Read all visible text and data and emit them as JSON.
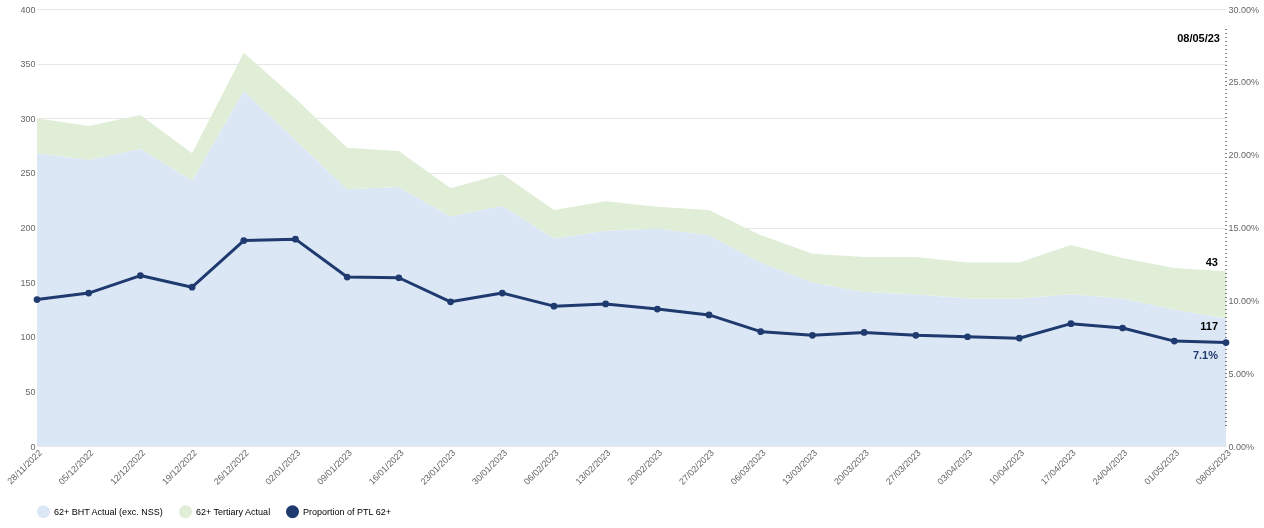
{
  "chart_data": {
    "type": "area",
    "stacked": true,
    "x": [
      "2022-11-28",
      "2022-12-05",
      "2022-12-12",
      "2022-12-19",
      "2022-12-26",
      "2023-01-02",
      "2023-01-09",
      "2023-01-16",
      "2023-01-23",
      "2023-01-30",
      "2023-02-06",
      "2023-02-13",
      "2023-02-20",
      "2023-02-27",
      "2023-03-06",
      "2023-03-13",
      "2023-03-20",
      "2023-03-27",
      "2023-04-03",
      "2023-04-10",
      "2023-04-17",
      "2023-04-24",
      "2023-05-01",
      "2023-05-08"
    ],
    "xlim": [
      "2022-11-28",
      "2023-05-08"
    ],
    "xticks": [
      {
        "value": "2022-11-28",
        "label": "28/11/2022"
      },
      {
        "value": "2022-12-05",
        "label": "05/12/2022"
      },
      {
        "value": "2022-12-12",
        "label": "12/12/2022"
      },
      {
        "value": "2022-12-19",
        "label": "19/12/2022"
      },
      {
        "value": "2022-12-26",
        "label": "26/12/2022"
      },
      {
        "value": "2023-01-02",
        "label": "02/01/2023"
      },
      {
        "value": "2023-01-09",
        "label": "09/01/2023"
      },
      {
        "value": "2023-01-16",
        "label": "16/01/2023"
      },
      {
        "value": "2023-01-23",
        "label": "23/01/2023"
      },
      {
        "value": "2023-01-30",
        "label": "30/01/2023"
      },
      {
        "value": "2023-02-06",
        "label": "06/02/2023"
      },
      {
        "value": "2023-02-13",
        "label": "13/02/2023"
      },
      {
        "value": "2023-02-20",
        "label": "20/02/2023"
      },
      {
        "value": "2023-02-27",
        "label": "27/02/2023"
      },
      {
        "value": "2023-03-06",
        "label": "06/03/2023"
      },
      {
        "value": "2023-03-13",
        "label": "13/03/2023"
      },
      {
        "value": "2023-03-20",
        "label": "20/03/2023"
      },
      {
        "value": "2023-03-27",
        "label": "27/03/2023"
      },
      {
        "value": "2023-04-03",
        "label": "03/04/2023"
      },
      {
        "value": "2023-04-10",
        "label": "10/04/2023"
      },
      {
        "value": "2023-04-17",
        "label": "17/04/2023"
      },
      {
        "value": "2023-04-24",
        "label": "24/04/2023"
      },
      {
        "value": "2023-05-01",
        "label": "01/05/2023"
      },
      {
        "value": "2023-05-08",
        "label": "08/05/2023"
      }
    ],
    "ylim": [
      0,
      400
    ],
    "yticks": [
      0,
      50,
      100,
      150,
      200,
      250,
      300,
      350,
      400
    ],
    "y2lim": [
      0,
      30
    ],
    "y2ticks": [
      {
        "value": 0,
        "label": "0.00%"
      },
      {
        "value": 5,
        "label": "5.00%"
      },
      {
        "value": 10,
        "label": "10.00%"
      },
      {
        "value": 15,
        "label": "15.00%"
      },
      {
        "value": 20,
        "label": "20.00%"
      },
      {
        "value": 25,
        "label": "25.00%"
      },
      {
        "value": 30,
        "label": "30.00%"
      }
    ],
    "series": [
      {
        "name": "62+ BHT Actual (exc. NSS)",
        "color": "#dce7f5",
        "values": [
          268,
          262,
          272,
          243,
          325,
          280,
          235,
          237,
          210,
          220,
          190,
          197,
          199,
          193,
          168,
          150,
          141,
          139,
          135,
          135,
          139,
          135,
          125,
          117
        ],
        "value_labels": [
          null,
          null,
          null,
          null,
          null,
          null,
          null,
          null,
          null,
          null,
          null,
          null,
          null,
          null,
          null,
          null,
          null,
          null,
          null,
          null,
          null,
          null,
          null,
          "117"
        ]
      },
      {
        "name": "62+ Tertiary Actual",
        "color": "#e0eed8",
        "values": [
          32,
          31,
          31,
          25,
          35,
          38,
          38,
          33,
          26,
          29,
          26,
          27,
          20,
          23,
          25,
          26,
          32,
          34,
          33,
          33,
          45,
          37,
          38,
          43
        ],
        "value_labels": [
          null,
          null,
          null,
          null,
          null,
          null,
          null,
          null,
          null,
          null,
          null,
          null,
          null,
          null,
          null,
          null,
          null,
          null,
          null,
          null,
          null,
          null,
          null,
          "43"
        ]
      },
      {
        "name": "Proportion of PTL 62+",
        "type": "line",
        "axis": "y2",
        "color": "#1f3a6e",
        "marker": "circle",
        "values": [
          10.05,
          10.5,
          11.7,
          10.9,
          14.1,
          14.2,
          11.6,
          11.55,
          9.9,
          10.5,
          9.6,
          9.75,
          9.4,
          9.0,
          7.85,
          7.6,
          7.8,
          7.6,
          7.5,
          7.4,
          8.4,
          8.1,
          7.2,
          7.1
        ],
        "value_labels": [
          null,
          null,
          null,
          null,
          null,
          null,
          null,
          null,
          null,
          null,
          null,
          null,
          null,
          null,
          null,
          null,
          null,
          null,
          null,
          null,
          null,
          null,
          null,
          "7.1%"
        ]
      }
    ],
    "ref_lines": [
      {
        "axis": "x",
        "value": "2023-05-08",
        "label": "08/05/23",
        "line_style": "dotted",
        "color": "#333333"
      }
    ],
    "grid": "y",
    "legend": "bottom"
  }
}
